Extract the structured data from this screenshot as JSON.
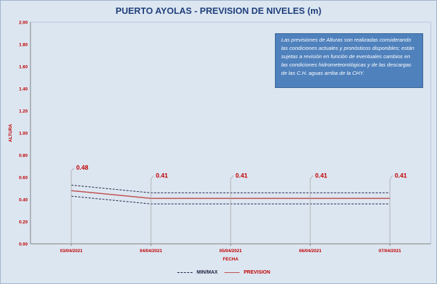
{
  "chart_data": {
    "type": "line",
    "title": "PUERTO AYOLAS - PREVISION DE NIVELES (m)",
    "xlabel": "FECHA",
    "ylabel": "ALTURA",
    "ylim": [
      0,
      2
    ],
    "yticks": [
      "0.00",
      "0.20",
      "0.40",
      "0.60",
      "0.80",
      "1.00",
      "1.20",
      "1.40",
      "1.60",
      "1.80",
      "2.00"
    ],
    "categories": [
      "03/04/2021",
      "04/04/2021",
      "05/04/2021",
      "06/04/2021",
      "07/04/2021"
    ],
    "series": [
      {
        "name": "PREVISION",
        "values": [
          0.48,
          0.41,
          0.41,
          0.41,
          0.41
        ],
        "color": "#c0504d",
        "style": "solid"
      },
      {
        "name": "MIN/MAX",
        "role": "max",
        "values": [
          0.53,
          0.46,
          0.46,
          0.46,
          0.46
        ],
        "color": "#1f1f3f",
        "style": "dashed"
      },
      {
        "name": "MIN/MAX",
        "role": "min",
        "values": [
          0.43,
          0.36,
          0.36,
          0.36,
          0.36
        ],
        "color": "#1f1f3f",
        "style": "dashed"
      }
    ],
    "data_labels": [
      "0.48",
      "0.41",
      "0.41",
      "0.41",
      "0.41"
    ],
    "annotation": "Las previsiones de Alturas son realizadas considerando las condiciones actuales y pronósticos disponibles; están sujetas a revisión en función de eventuales cambios en las condiciones hidrometeorológicas y de las descargas de las C.H. aguas arriba de la CHY.",
    "legend": [
      "MIN/MAX",
      "PREVISION"
    ],
    "legend_position": "bottom",
    "grid": false,
    "colors": {
      "background": "#dce6f1",
      "axis_text": "#c00000",
      "title": "#1f3f7a",
      "note_bg": "#4f81bd"
    }
  }
}
